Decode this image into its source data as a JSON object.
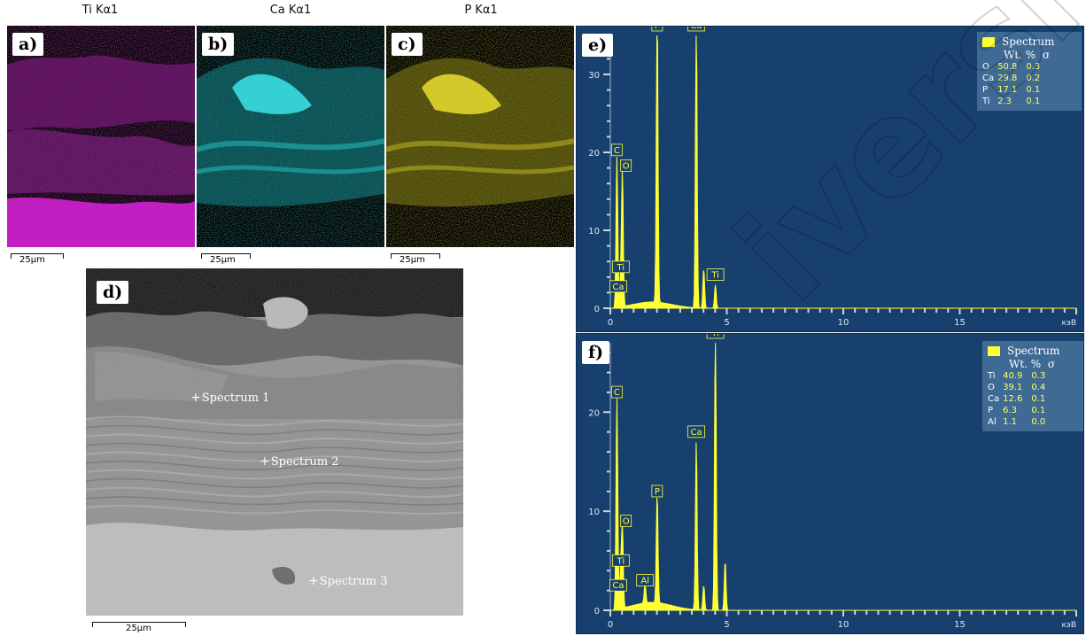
{
  "elemental_maps": [
    {
      "label": "a)",
      "title": "Ti Kα1",
      "color": "#c020c0",
      "scalebar": "25μm"
    },
    {
      "label": "b)",
      "title": "Ca Kα1",
      "color": "#20c8c8",
      "scalebar": "25μm"
    },
    {
      "label": "c)",
      "title": "P Kα1",
      "color": "#c8c020",
      "scalebar": "25μm"
    }
  ],
  "sem_image": {
    "label": "d)",
    "scalebar": "25μm",
    "markers": [
      "Spectrum 1",
      "Spectrum 2",
      "Spectrum 3"
    ]
  },
  "chart_data": [
    {
      "type": "line",
      "panel": "e)",
      "x_unit": "кэВ",
      "xlim": [
        0,
        20
      ],
      "ylim": [
        0,
        35
      ],
      "xticks": [
        0,
        5,
        10,
        15
      ],
      "yticks": [
        0,
        10,
        20,
        30
      ],
      "peaks": [
        {
          "label": "C",
          "x": 0.28,
          "y": 19
        },
        {
          "label": "O",
          "x": 0.52,
          "y": 17
        },
        {
          "label": "Ti",
          "x": 0.45,
          "y": 4
        },
        {
          "label": "Ca",
          "x": 0.34,
          "y": 1.5
        },
        {
          "label": "P",
          "x": 2.01,
          "y": 38
        },
        {
          "label": "Ca",
          "x": 3.69,
          "y": 38
        },
        {
          "label": "Ti",
          "x": 4.51,
          "y": 3
        },
        {
          "label": "",
          "x": 4.01,
          "y": 5
        }
      ],
      "legend": {
        "title": "Spectrum",
        "columns": [
          "Wt. %",
          "σ"
        ],
        "rows": [
          {
            "element": "O",
            "wt": "50.8",
            "sigma": "0.3"
          },
          {
            "element": "Ca",
            "wt": "29.8",
            "sigma": "0.2"
          },
          {
            "element": "P",
            "wt": "17.1",
            "sigma": "0.1"
          },
          {
            "element": "Ti",
            "wt": "2.3",
            "sigma": "0.1"
          }
        ]
      }
    },
    {
      "type": "line",
      "panel": "f)",
      "x_unit": "кэВ",
      "xlim": [
        0,
        20
      ],
      "ylim": [
        0,
        27
      ],
      "xticks": [
        0,
        5,
        10,
        15
      ],
      "yticks": [
        0,
        10,
        20
      ],
      "peaks": [
        {
          "label": "C",
          "x": 0.28,
          "y": 21
        },
        {
          "label": "O",
          "x": 0.52,
          "y": 8
        },
        {
          "label": "Ti",
          "x": 0.45,
          "y": 4
        },
        {
          "label": "Ca",
          "x": 0.34,
          "y": 1.5
        },
        {
          "label": "Al",
          "x": 1.49,
          "y": 2
        },
        {
          "label": "P",
          "x": 2.01,
          "y": 11
        },
        {
          "label": "Ca",
          "x": 3.69,
          "y": 17
        },
        {
          "label": "Ti",
          "x": 4.51,
          "y": 29
        },
        {
          "label": "",
          "x": 4.93,
          "y": 5
        },
        {
          "label": "",
          "x": 4.01,
          "y": 2.5
        }
      ],
      "legend": {
        "title": "Spectrum",
        "columns": [
          "Wt. %",
          "σ"
        ],
        "rows": [
          {
            "element": "Ti",
            "wt": "40.9",
            "sigma": "0.3"
          },
          {
            "element": "O",
            "wt": "39.1",
            "sigma": "0.4"
          },
          {
            "element": "Ca",
            "wt": "12.6",
            "sigma": "0.1"
          },
          {
            "element": "P",
            "wt": "6.3",
            "sigma": "0.1"
          },
          {
            "element": "Al",
            "wt": "1.1",
            "sigma": "0.0"
          }
        ]
      }
    }
  ],
  "watermark": "iversity"
}
